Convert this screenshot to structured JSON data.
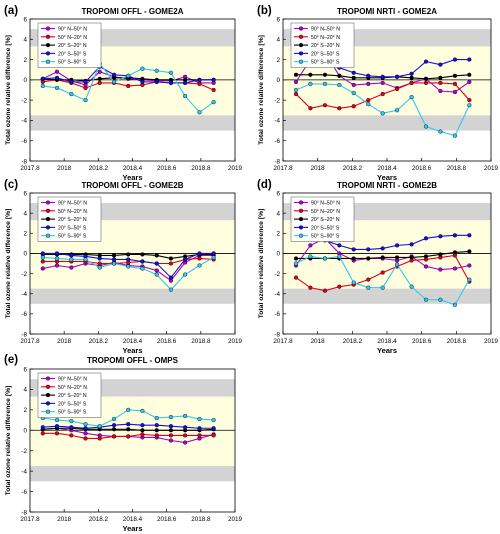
{
  "colors": {
    "band_gray": "#d3d3d3",
    "band_yellow": "#ffffe0",
    "s1": "#b000d0",
    "s2": "#e0001c",
    "s3": "#000000",
    "s4": "#1010e0",
    "s5": "#30c8f0"
  },
  "chart_data": [
    {
      "type": "line",
      "panel_label": "(a)",
      "title": "TROPOMI OFFL - GOME2A",
      "xlabel": "Years",
      "ylabel": "Total ozone relative difference [%]",
      "xlim": [
        2017.8,
        2019
      ],
      "ylim": [
        -8,
        6
      ],
      "xticks": [
        "2017.8",
        "2018",
        "2018.2",
        "2018.4",
        "2018.6",
        "2018.8",
        "2019"
      ],
      "yticks": [
        "-8",
        "-6",
        "-4",
        "-2",
        "0",
        "2",
        "4",
        "6"
      ],
      "shaded_bands": {
        "yellow": [
          -3.5,
          3.3
        ],
        "gray_upper": [
          3.3,
          5
        ],
        "gray_lower": [
          -5,
          -3.5
        ]
      },
      "legend_position": "top-left",
      "x": [
        2017.875,
        2017.958,
        2018.042,
        2018.125,
        2018.208,
        2018.292,
        2018.375,
        2018.458,
        2018.542,
        2018.625,
        2018.708,
        2018.792,
        2018.875
      ],
      "series": [
        {
          "name": "90° N–50° N",
          "values": [
            0.1,
            0.8,
            -0.1,
            -0.5,
            0.8,
            0.3,
            0.1,
            0.0,
            -0.1,
            -0.1,
            0.3,
            -0.3,
            -0.3
          ]
        },
        {
          "name": "50° N–20° N",
          "values": [
            -0.2,
            0.0,
            -0.3,
            -0.8,
            -0.3,
            -0.3,
            -0.6,
            -0.5,
            -0.2,
            -0.3,
            -0.3,
            -0.4,
            -1.0
          ]
        },
        {
          "name": "20° S–20° N",
          "values": [
            0.1,
            0.0,
            0.0,
            -0.1,
            0.1,
            0.2,
            0.2,
            0.1,
            0.0,
            0.0,
            0.0,
            0.0,
            0.0
          ]
        },
        {
          "name": "20° S–50° S",
          "values": [
            0.1,
            0.2,
            -0.2,
            -0.2,
            1.3,
            0.5,
            0.4,
            -0.2,
            -0.2,
            -0.3,
            -0.3,
            0.0,
            0.0
          ]
        },
        {
          "name": "50° S–90° S",
          "values": [
            -0.6,
            -0.8,
            -1.4,
            -2.0,
            1.6,
            -0.2,
            0.4,
            1.1,
            0.9,
            0.7,
            -1.6,
            -3.2,
            -2.2
          ]
        }
      ]
    },
    {
      "type": "line",
      "panel_label": "(b)",
      "title": "TROPOMI NRTI - GOME2A",
      "xlabel": "Years",
      "ylabel": "Total ozone relative difference [%]",
      "xlim": [
        2017.8,
        2019
      ],
      "ylim": [
        -8,
        6
      ],
      "xticks": [
        "2017.8",
        "2018",
        "2018.2",
        "2018.4",
        "2018.6",
        "2018.8",
        "2019"
      ],
      "yticks": [
        "-8",
        "-6",
        "-4",
        "-2",
        "0",
        "2",
        "4",
        "6"
      ],
      "shaded_bands": {
        "yellow": [
          -3.5,
          3.3
        ],
        "gray_upper": [
          3.3,
          5
        ],
        "gray_lower": [
          -5,
          -3.5
        ]
      },
      "legend_position": "top-left",
      "x": [
        2017.875,
        2017.958,
        2018.042,
        2018.125,
        2018.208,
        2018.292,
        2018.375,
        2018.458,
        2018.542,
        2018.625,
        2018.708,
        2018.792,
        2018.875
      ],
      "series": [
        {
          "name": "90° N–50° N",
          "values": [
            -0.2,
            2.0,
            2.7,
            0.4,
            -0.5,
            -0.4,
            -0.3,
            -0.8,
            -0.3,
            0.1,
            -1.1,
            -1.2,
            -0.2
          ]
        },
        {
          "name": "50° N–20° N",
          "values": [
            -1.4,
            -2.8,
            -2.5,
            -2.8,
            -2.6,
            -2.0,
            -1.4,
            -0.9,
            -0.3,
            -0.3,
            -0.3,
            -0.4,
            -2.0
          ]
        },
        {
          "name": "20° S–20° N",
          "values": [
            0.5,
            0.5,
            0.5,
            0.4,
            0.2,
            0.2,
            0.2,
            0.3,
            0.2,
            0.1,
            0.2,
            0.4,
            0.5
          ]
        },
        {
          "name": "20° S–50° S",
          "values": [
            2.0,
            2.2,
            1.6,
            1.2,
            0.7,
            0.4,
            0.3,
            0.3,
            0.6,
            1.8,
            1.5,
            2.0,
            2.0
          ]
        },
        {
          "name": "50° S–90° S",
          "values": [
            -1.0,
            -0.4,
            -0.4,
            -0.5,
            -1.3,
            -2.4,
            -3.3,
            -3.0,
            -1.7,
            -4.6,
            -5.1,
            -5.5,
            -2.5
          ]
        }
      ]
    },
    {
      "type": "line",
      "panel_label": "(c)",
      "title": "TROPOMI OFFL - GOME2B",
      "xlabel": "Years",
      "ylabel": "Total ozone relative difference [%]",
      "xlim": [
        2017.8,
        2019
      ],
      "ylim": [
        -8,
        6
      ],
      "xticks": [
        "2017.8",
        "2018",
        "2018.2",
        "2018.4",
        "2018.6",
        "2018.8",
        "2019"
      ],
      "yticks": [
        "-8",
        "-6",
        "-4",
        "-2",
        "0",
        "2",
        "4",
        "6"
      ],
      "shaded_bands": {
        "yellow": [
          -3.5,
          3.3
        ],
        "gray_upper": [
          3.3,
          5
        ],
        "gray_lower": [
          -5,
          -3.5
        ]
      },
      "legend_position": "top-left",
      "x": [
        2017.875,
        2017.958,
        2018.042,
        2018.125,
        2018.208,
        2018.292,
        2018.375,
        2018.458,
        2018.542,
        2018.625,
        2018.708,
        2018.792,
        2018.875
      ],
      "series": [
        {
          "name": "90° N–50° N",
          "values": [
            -1.5,
            -1.2,
            -1.4,
            -1.0,
            -1.2,
            -0.9,
            -1.2,
            -1.3,
            -1.7,
            -2.7,
            -0.9,
            -0.2,
            -0.2
          ]
        },
        {
          "name": "50° N–20° N",
          "values": [
            -0.8,
            -0.8,
            -0.8,
            -0.8,
            -1.0,
            -1.0,
            -0.9,
            -0.8,
            -1.0,
            -1.0,
            -0.6,
            -0.5,
            -0.6
          ]
        },
        {
          "name": "20° S–20° N",
          "values": [
            -0.1,
            -0.1,
            -0.1,
            -0.1,
            -0.2,
            -0.2,
            -0.1,
            -0.1,
            -0.2,
            -0.5,
            -0.3,
            -0.1,
            -0.1
          ]
        },
        {
          "name": "20° S–50° S",
          "values": [
            0.0,
            0.0,
            -0.2,
            -0.3,
            -0.5,
            -0.6,
            -0.6,
            -0.8,
            -1.0,
            -2.4,
            -0.6,
            0.0,
            0.0
          ]
        },
        {
          "name": "50° S–90° S",
          "values": [
            -0.4,
            -0.5,
            -0.6,
            -0.6,
            -1.4,
            -1.0,
            -1.3,
            -1.5,
            -2.1,
            -3.6,
            -2.1,
            -1.2,
            -0.4
          ]
        }
      ]
    },
    {
      "type": "line",
      "panel_label": "(d)",
      "title": "TROPOMI NRTI - GOME2B",
      "xlabel": "Years",
      "ylabel": "Total ozone relative difference [%]",
      "xlim": [
        2017.8,
        2019
      ],
      "ylim": [
        -8,
        6
      ],
      "xticks": [
        "2017.8",
        "2018",
        "2018.2",
        "2018.4",
        "2018.6",
        "2018.8",
        "2019"
      ],
      "yticks": [
        "-8",
        "-6",
        "-4",
        "-2",
        "0",
        "2",
        "4",
        "6"
      ],
      "shaded_bands": {
        "yellow": [
          -3.5,
          3.3
        ],
        "gray_upper": [
          3.3,
          5
        ],
        "gray_lower": [
          -5,
          -3.5
        ]
      },
      "legend_position": "top-left",
      "x": [
        2017.875,
        2017.958,
        2018.042,
        2018.125,
        2018.208,
        2018.292,
        2018.375,
        2018.458,
        2018.542,
        2018.625,
        2018.708,
        2018.792,
        2018.875
      ],
      "series": [
        {
          "name": "90° N–50° N",
          "values": [
            -1.2,
            0.8,
            1.5,
            0.0,
            -0.7,
            -0.5,
            -0.5,
            -0.7,
            -0.3,
            -1.3,
            -1.6,
            -1.5,
            -1.2
          ]
        },
        {
          "name": "50° N–20° N",
          "values": [
            -2.4,
            -3.4,
            -3.7,
            -3.3,
            -3.1,
            -2.6,
            -1.9,
            -1.3,
            -0.7,
            -0.6,
            -0.4,
            -0.2,
            -2.8
          ]
        },
        {
          "name": "20° S–20° N",
          "values": [
            -0.5,
            -0.5,
            -0.5,
            -0.5,
            -0.5,
            -0.5,
            -0.4,
            -0.4,
            -0.4,
            -0.3,
            -0.1,
            0.1,
            0.2
          ]
        },
        {
          "name": "20° S–50° S",
          "values": [
            1.6,
            1.7,
            1.3,
            0.8,
            0.4,
            0.4,
            0.5,
            0.8,
            0.9,
            1.5,
            1.7,
            1.8,
            1.8
          ]
        },
        {
          "name": "50° S–90° S",
          "values": [
            -1.0,
            -0.3,
            -0.5,
            -0.3,
            -2.9,
            -3.4,
            -3.4,
            -1.1,
            -3.3,
            -4.6,
            -4.6,
            -5.1,
            -2.6
          ]
        }
      ]
    },
    {
      "type": "line",
      "panel_label": "(e)",
      "title": "TROPOMI OFFL - OMPS",
      "xlabel": "Years",
      "ylabel": "Total ozone relative difference [%]",
      "xlim": [
        2017.8,
        2019
      ],
      "ylim": [
        -8,
        6
      ],
      "xticks": [
        "2017.8",
        "2018",
        "2018.2",
        "2018.4",
        "2018.6",
        "2018.8",
        "2019"
      ],
      "yticks": [
        "-8",
        "-6",
        "-4",
        "-2",
        "0",
        "2",
        "4",
        "6"
      ],
      "shaded_bands": {
        "yellow": [
          -3.5,
          3.3
        ],
        "gray_upper": [
          3.3,
          5
        ],
        "gray_lower": [
          -5,
          -3.5
        ]
      },
      "legend_position": "top-left",
      "x": [
        2017.875,
        2017.958,
        2018.042,
        2018.125,
        2018.208,
        2018.292,
        2018.375,
        2018.458,
        2018.542,
        2018.625,
        2018.708,
        2018.792,
        2018.875
      ],
      "series": [
        {
          "name": "90° N–50° N",
          "values": [
            0.1,
            0.2,
            0.0,
            -0.3,
            -0.5,
            -0.6,
            -0.6,
            -0.7,
            -0.7,
            -1.0,
            -1.2,
            -0.8,
            -0.4
          ]
        },
        {
          "name": "50° N–20° N",
          "values": [
            -0.3,
            -0.3,
            -0.5,
            -0.8,
            -0.8,
            -0.6,
            -0.6,
            -0.4,
            -0.5,
            -0.5,
            -0.5,
            -0.5,
            -0.5
          ]
        },
        {
          "name": "20° S–20° N",
          "values": [
            0.1,
            0.2,
            0.2,
            0.1,
            0.1,
            0.1,
            0.1,
            0.0,
            0.0,
            0.0,
            0.0,
            0.0,
            0.1
          ]
        },
        {
          "name": "20° S–50° S",
          "values": [
            0.3,
            0.4,
            0.3,
            0.2,
            0.3,
            0.5,
            0.6,
            0.5,
            0.5,
            0.4,
            0.3,
            0.2,
            0.2
          ]
        },
        {
          "name": "50° S–90° S",
          "values": [
            1.2,
            1.0,
            0.9,
            0.6,
            0.4,
            1.1,
            2.0,
            1.9,
            1.2,
            1.3,
            1.4,
            1.1,
            1.0
          ]
        }
      ]
    }
  ]
}
